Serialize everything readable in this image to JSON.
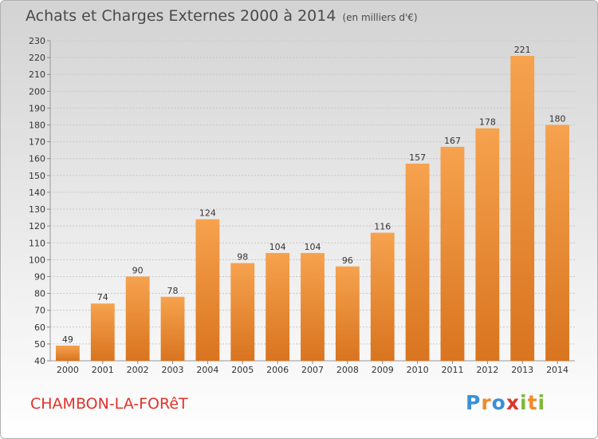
{
  "title": "Achats et Charges Externes 2000 à 2014",
  "subtitle": "(en milliers d'€)",
  "location": "CHAMBON-LA-FORêT",
  "logo": {
    "text": "Proxiti",
    "letters": [
      {
        "char": "P",
        "color": "#3a8fd6"
      },
      {
        "char": "r",
        "color": "#f08a2c"
      },
      {
        "char": "o",
        "color": "#3a8fd6"
      },
      {
        "char": "x",
        "color": "#e0332a"
      },
      {
        "char": "i",
        "color": "#7fb83a"
      },
      {
        "char": "t",
        "color": "#f08a2c"
      },
      {
        "char": "i",
        "color": "#7fb83a"
      }
    ]
  },
  "colors": {
    "bar_light": "#f6a24e",
    "bar_dark": "#d9741f",
    "grid": "#c8c8c8",
    "axis_text": "#333333"
  },
  "chart_data": {
    "type": "bar",
    "title": "Achats et Charges Externes 2000 à 2014",
    "subtitle": "(en milliers d'€)",
    "xlabel": "",
    "ylabel": "",
    "ylim": [
      40,
      230
    ],
    "ytick_step": 10,
    "grid": true,
    "categories": [
      "2000",
      "2001",
      "2002",
      "2003",
      "2004",
      "2005",
      "2006",
      "2007",
      "2008",
      "2009",
      "2010",
      "2011",
      "2012",
      "2013",
      "2014"
    ],
    "values": [
      49,
      74,
      90,
      78,
      124,
      98,
      104,
      104,
      96,
      116,
      157,
      167,
      178,
      221,
      180
    ]
  }
}
